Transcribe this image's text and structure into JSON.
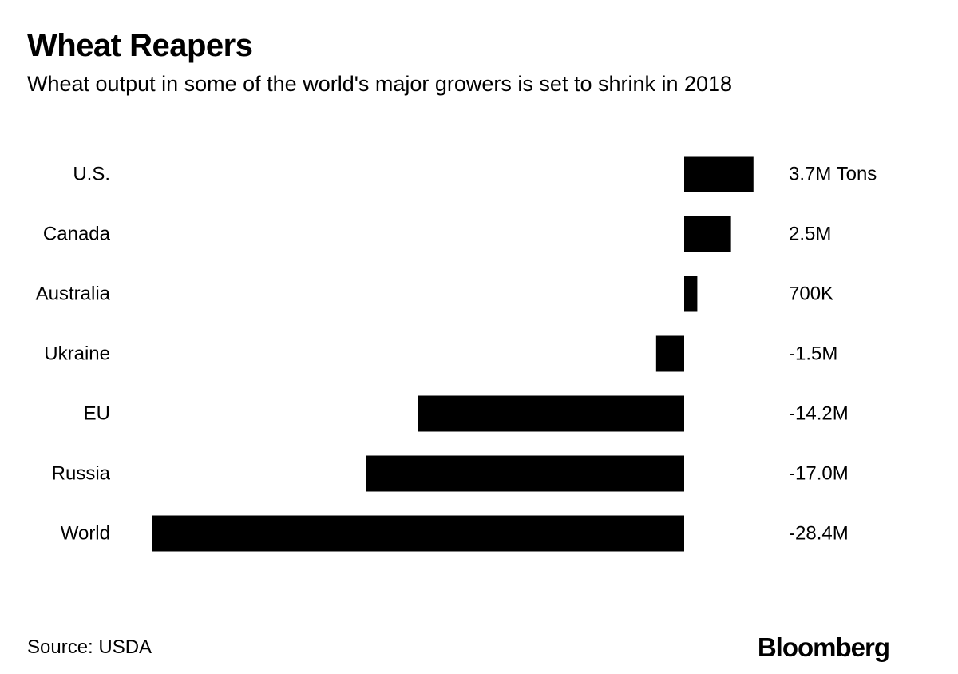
{
  "header": {
    "title": "Wheat Reapers",
    "subtitle": "Wheat output in some of the world's major growers is set to shrink in 2018"
  },
  "footer": {
    "source": "Source: USDA",
    "brand": "Bloomberg"
  },
  "colors": {
    "bar": "#000000",
    "text": "#000000",
    "background": "#ffffff"
  },
  "chart_data": {
    "type": "bar",
    "orientation": "horizontal",
    "unit": "tons",
    "categories": [
      "U.S.",
      "Canada",
      "Australia",
      "Ukraine",
      "EU",
      "Russia",
      "World"
    ],
    "values": [
      3.7,
      2.5,
      0.7,
      -1.5,
      -14.2,
      -17.0,
      -28.4
    ],
    "value_labels": [
      "3.7M Tons",
      "2.5M",
      "700K",
      "-1.5M",
      "-14.2M",
      "-17.0M",
      "-28.4M"
    ],
    "xlim": [
      -28.4,
      3.7
    ],
    "grid": false,
    "legend": "none",
    "title": "Wheat Reapers",
    "xlabel": "",
    "ylabel": ""
  }
}
